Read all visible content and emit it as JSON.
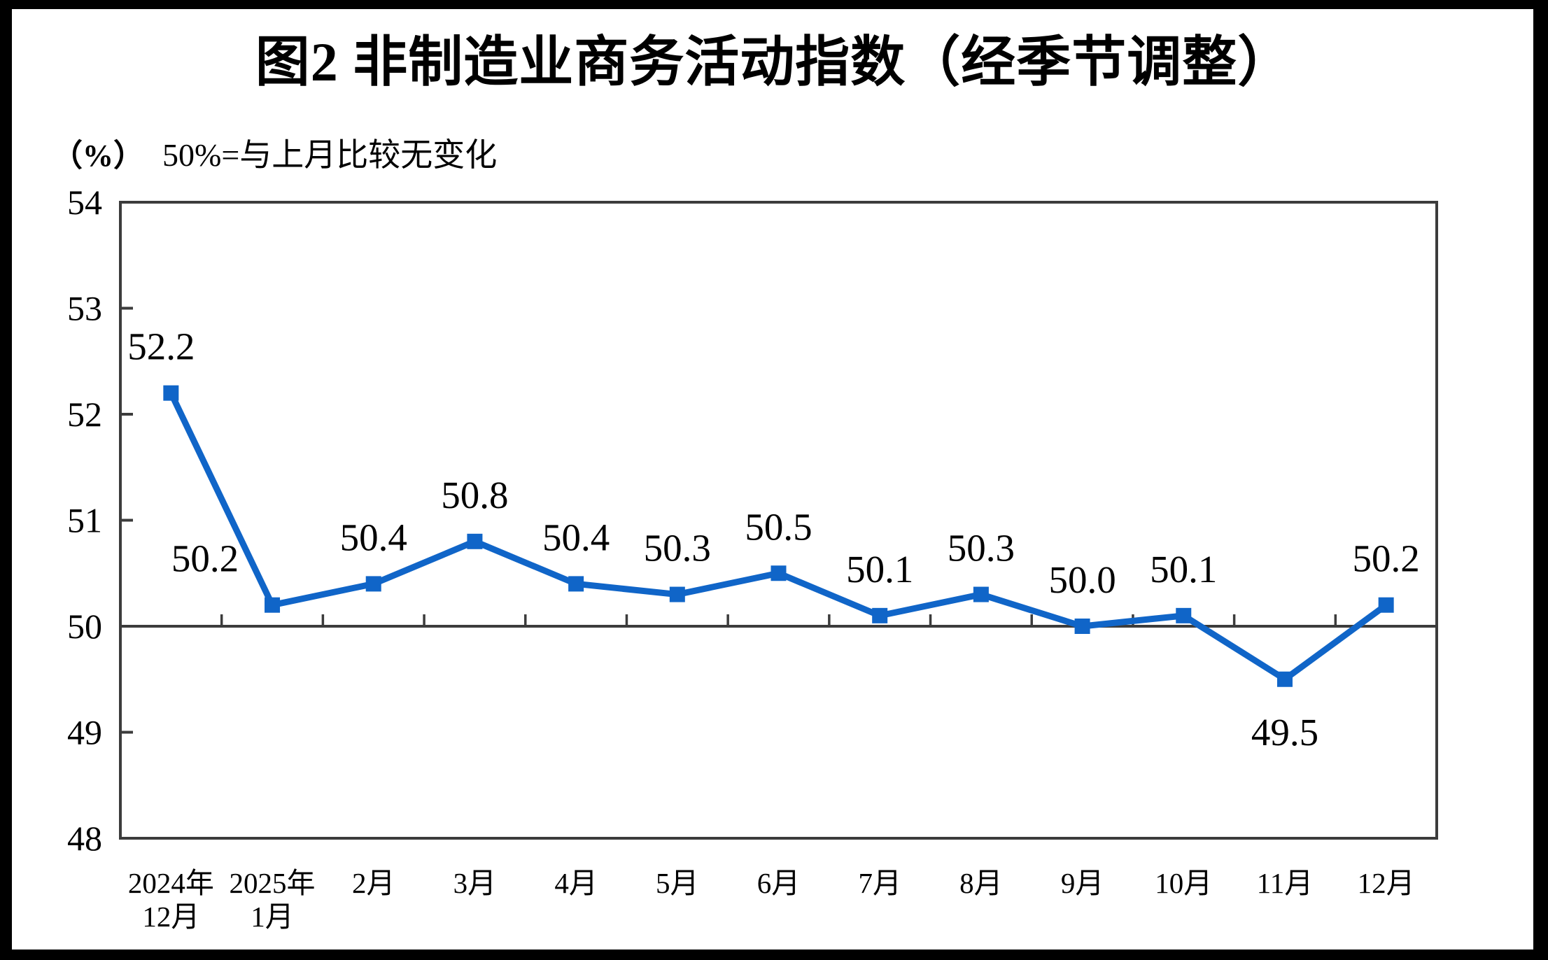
{
  "chart_data": {
    "type": "line",
    "title": "图2 非制造业商务活动指数（经季节调整）",
    "unit_label": "（%）",
    "note": "50%=与上月比较无变化",
    "categories": [
      "2024年12月",
      "2025年1月",
      "2月",
      "3月",
      "4月",
      "5月",
      "6月",
      "7月",
      "8月",
      "9月",
      "10月",
      "11月",
      "12月"
    ],
    "x_tick_lines": [
      [
        "2024年",
        "12月"
      ],
      [
        "2025年",
        "1月"
      ],
      [
        "2月"
      ],
      [
        "3月"
      ],
      [
        "4月"
      ],
      [
        "5月"
      ],
      [
        "6月"
      ],
      [
        "7月"
      ],
      [
        "8月"
      ],
      [
        "9月"
      ],
      [
        "10月"
      ],
      [
        "11月"
      ],
      [
        "12月"
      ]
    ],
    "series": [
      {
        "name": "非制造业商务活动指数（经季节调整）",
        "values": [
          52.2,
          50.2,
          50.4,
          50.8,
          50.4,
          50.3,
          50.5,
          50.1,
          50.3,
          50.0,
          50.1,
          49.5,
          50.2
        ]
      }
    ],
    "data_labels": [
      "52.2",
      "50.2",
      "50.4",
      "50.8",
      "50.4",
      "50.3",
      "50.5",
      "50.1",
      "50.3",
      "50.0",
      "50.1",
      "49.5",
      "50.2"
    ],
    "y_ticks": [
      54,
      53,
      52,
      51,
      50,
      49,
      48
    ],
    "ylim": [
      48,
      54
    ],
    "baseline_value": 50,
    "grid": false,
    "legend": false,
    "line_color": "#1065C8",
    "marker": "square",
    "axis_color": "#3C3C3C",
    "text_color": "#000000",
    "frame_color": "#000000",
    "background_color": "#FFFFFF"
  }
}
